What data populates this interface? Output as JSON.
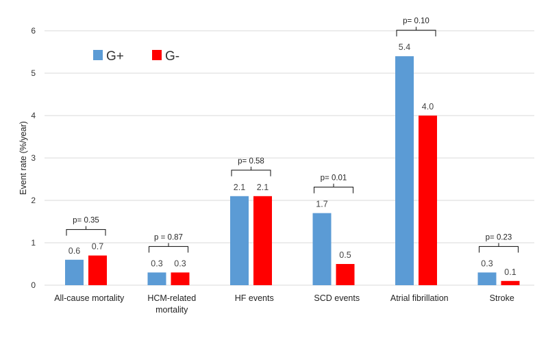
{
  "chart_data": {
    "type": "bar",
    "ylabel": "Event rate (%/year)",
    "ylim": [
      0,
      6
    ],
    "yticks": [
      0,
      1,
      2,
      3,
      4,
      5,
      6
    ],
    "grid": true,
    "legend_position": "top-left",
    "categories": [
      [
        "All-cause mortality"
      ],
      [
        "HCM-related",
        "mortality"
      ],
      [
        "HF events"
      ],
      [
        "SCD events"
      ],
      [
        "Atrial fibrillation"
      ],
      [
        "Stroke"
      ]
    ],
    "series": [
      {
        "name": "G+",
        "color": "#5B9BD5",
        "values": [
          0.6,
          0.3,
          2.1,
          1.7,
          5.4,
          0.3
        ],
        "labels": [
          "0.6",
          "0.3",
          "2.1",
          "1.7",
          "5.4",
          "0.3"
        ]
      },
      {
        "name": "G-",
        "color": "#FF0000",
        "values": [
          0.7,
          0.3,
          2.1,
          0.5,
          4.0,
          0.1
        ],
        "labels": [
          "0.7",
          "0.3",
          "2.1",
          "0.5",
          "4.0",
          "0.1"
        ]
      }
    ],
    "p_values": [
      "p= 0.35",
      "p = 0.87",
      "p= 0.58",
      "p= 0.01",
      "p= 0.10",
      "p= 0.23"
    ],
    "grid_color": "#D9D9D9",
    "axis_color": "#D9D9D9"
  }
}
